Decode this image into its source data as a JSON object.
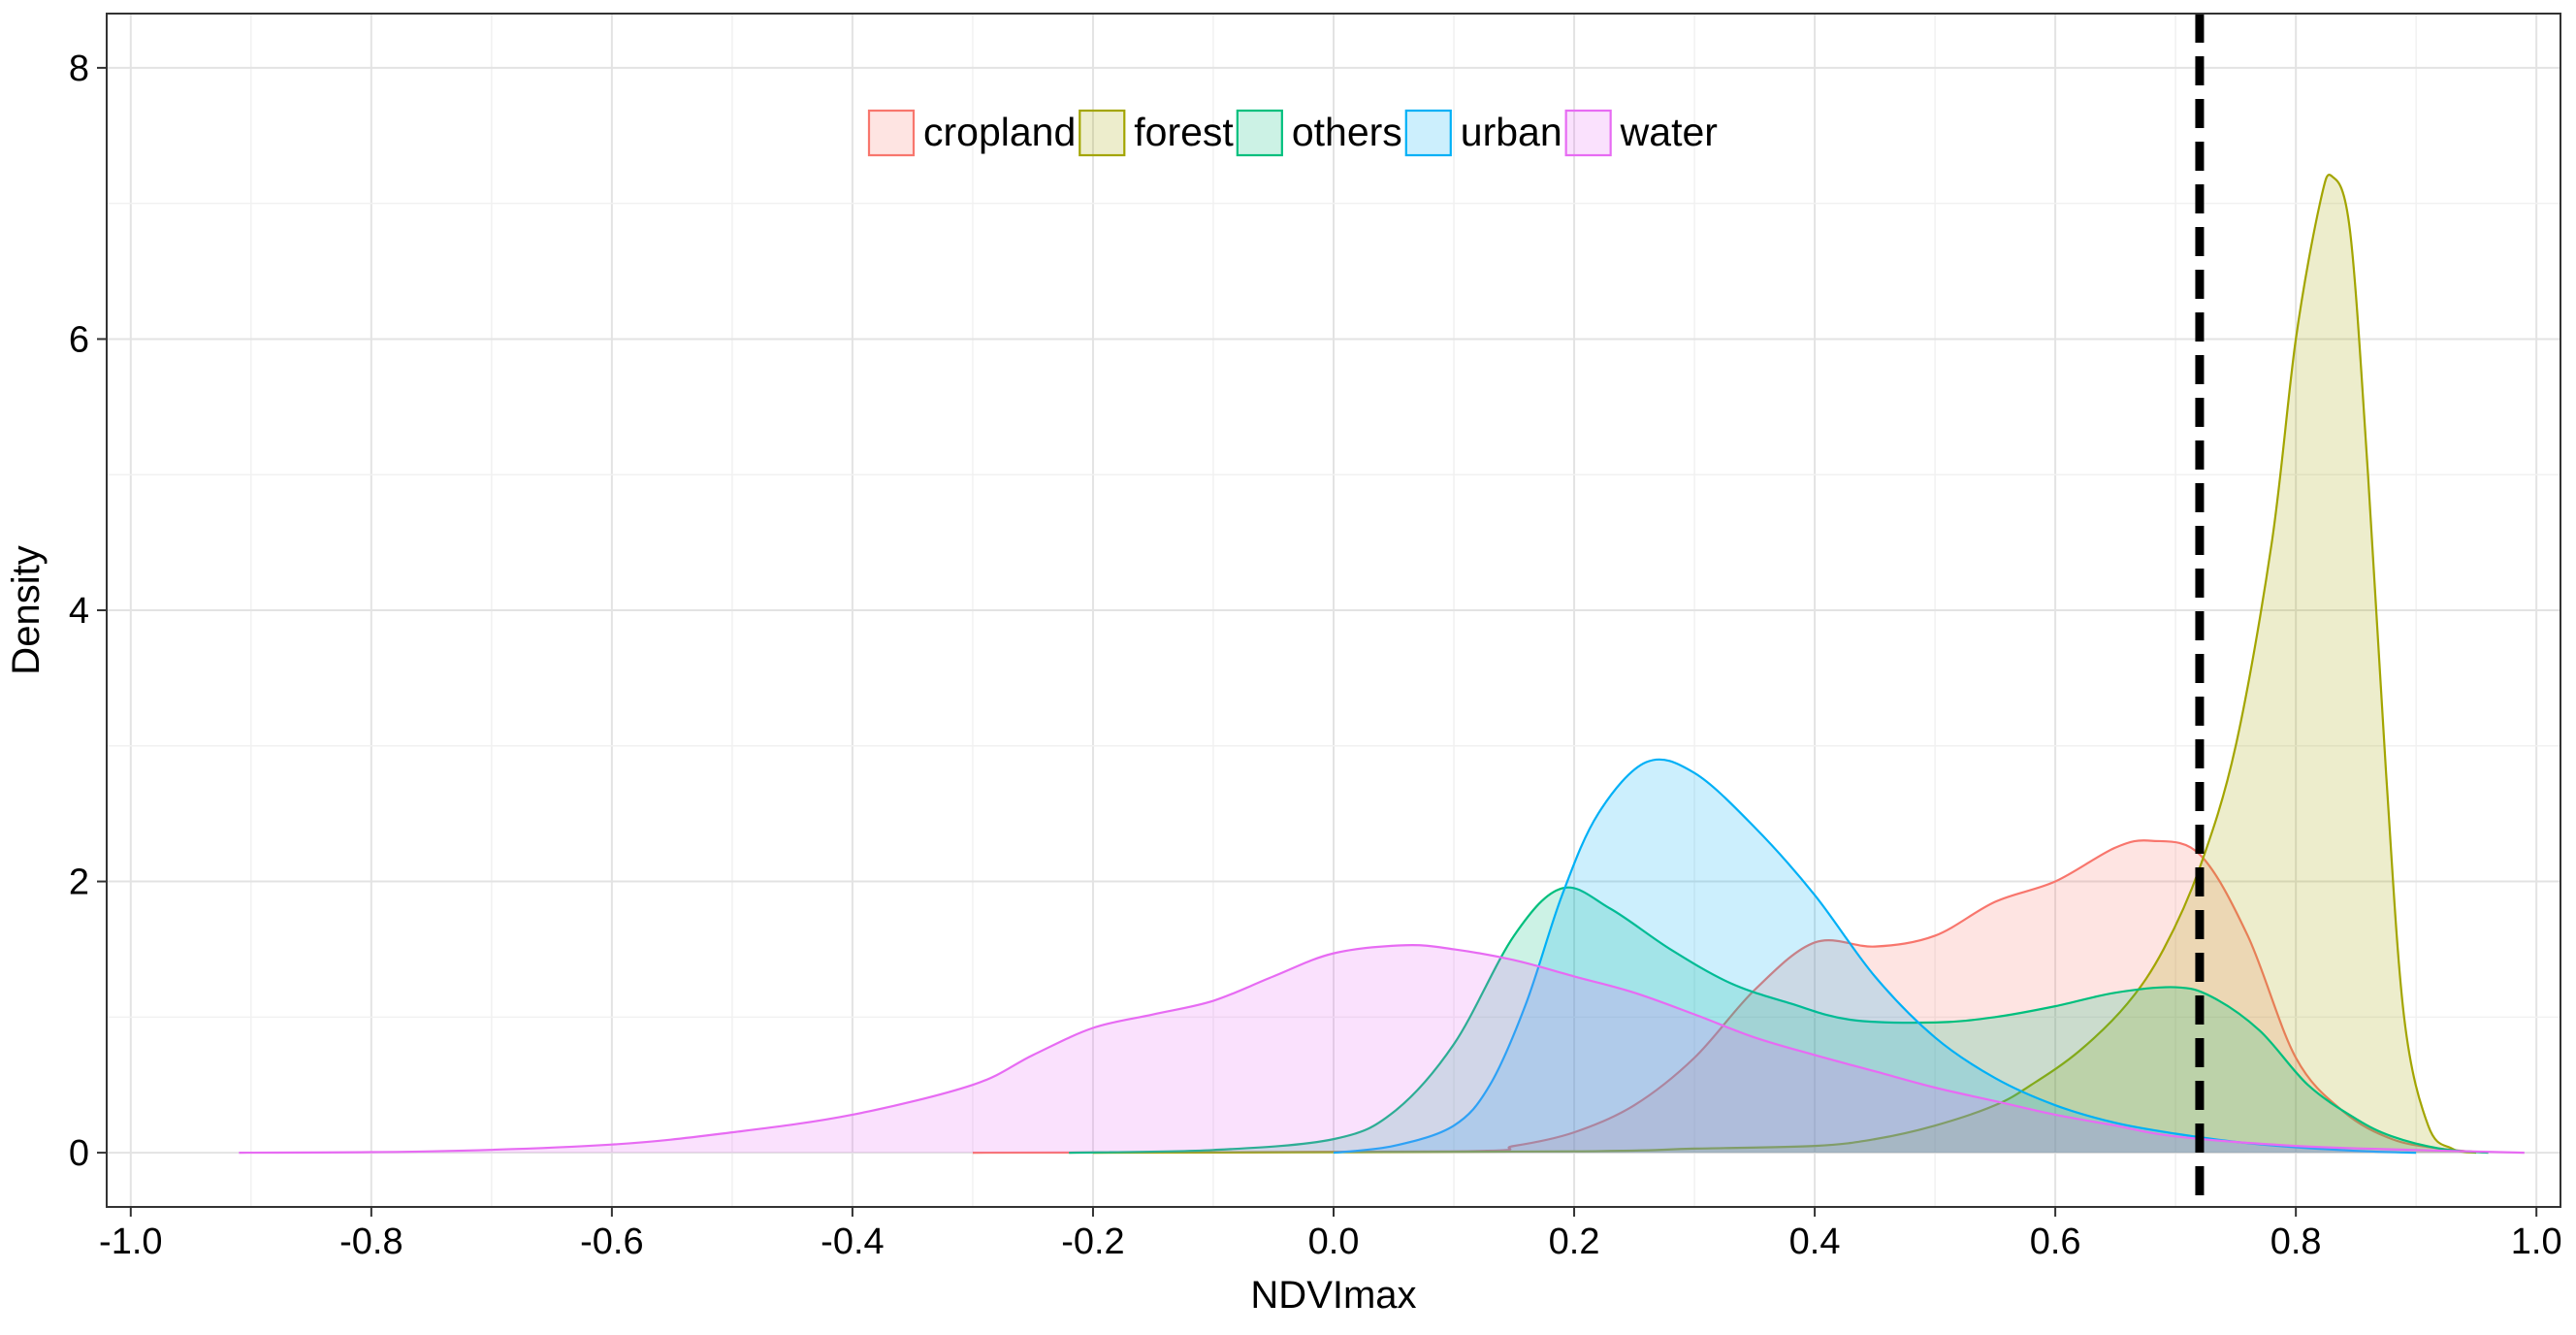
{
  "chart_data": {
    "type": "area",
    "xlabel": "NDVImax",
    "ylabel": "Density",
    "xlim": [
      -1.02,
      1.02
    ],
    "ylim": [
      -0.4,
      8.4
    ],
    "xticks": [
      "-1.0",
      "-0.8",
      "-0.6",
      "-0.4",
      "-0.2",
      "0.0",
      "0.2",
      "0.4",
      "0.6",
      "0.8",
      "1.0"
    ],
    "yticks": [
      "0",
      "2",
      "4",
      "6",
      "8"
    ],
    "grid": true,
    "legend_position": "top-center",
    "threshold_line": {
      "x": 0.72,
      "style": "dashed",
      "color": "#000000"
    },
    "series": [
      {
        "name": "cropland",
        "color": "#F8766D",
        "points": [
          [
            -0.3,
            0
          ],
          [
            0.1,
            0.01
          ],
          [
            0.15,
            0.05
          ],
          [
            0.2,
            0.15
          ],
          [
            0.25,
            0.35
          ],
          [
            0.3,
            0.7
          ],
          [
            0.35,
            1.2
          ],
          [
            0.4,
            1.55
          ],
          [
            0.45,
            1.52
          ],
          [
            0.5,
            1.6
          ],
          [
            0.55,
            1.85
          ],
          [
            0.6,
            2.0
          ],
          [
            0.65,
            2.25
          ],
          [
            0.68,
            2.3
          ],
          [
            0.72,
            2.2
          ],
          [
            0.76,
            1.6
          ],
          [
            0.8,
            0.7
          ],
          [
            0.84,
            0.3
          ],
          [
            0.88,
            0.1
          ],
          [
            0.92,
            0.03
          ],
          [
            0.96,
            0
          ]
        ]
      },
      {
        "name": "forest",
        "color": "#A3A500",
        "points": [
          [
            -0.2,
            0
          ],
          [
            0.2,
            0.01
          ],
          [
            0.3,
            0.03
          ],
          [
            0.4,
            0.05
          ],
          [
            0.45,
            0.1
          ],
          [
            0.5,
            0.2
          ],
          [
            0.55,
            0.35
          ],
          [
            0.58,
            0.5
          ],
          [
            0.62,
            0.75
          ],
          [
            0.66,
            1.1
          ],
          [
            0.69,
            1.5
          ],
          [
            0.72,
            2.1
          ],
          [
            0.75,
            3.0
          ],
          [
            0.78,
            4.5
          ],
          [
            0.8,
            6.0
          ],
          [
            0.82,
            7.0
          ],
          [
            0.83,
            7.2
          ],
          [
            0.845,
            6.8
          ],
          [
            0.86,
            5.0
          ],
          [
            0.875,
            2.8
          ],
          [
            0.89,
            1.0
          ],
          [
            0.91,
            0.2
          ],
          [
            0.93,
            0.03
          ],
          [
            0.95,
            0
          ]
        ]
      },
      {
        "name": "others",
        "color": "#00BF7D",
        "points": [
          [
            -0.22,
            0
          ],
          [
            -0.1,
            0.02
          ],
          [
            0.0,
            0.1
          ],
          [
            0.05,
            0.3
          ],
          [
            0.1,
            0.8
          ],
          [
            0.15,
            1.6
          ],
          [
            0.19,
            1.95
          ],
          [
            0.23,
            1.8
          ],
          [
            0.28,
            1.5
          ],
          [
            0.33,
            1.25
          ],
          [
            0.38,
            1.1
          ],
          [
            0.43,
            0.98
          ],
          [
            0.5,
            0.96
          ],
          [
            0.55,
            1.0
          ],
          [
            0.6,
            1.08
          ],
          [
            0.65,
            1.18
          ],
          [
            0.7,
            1.22
          ],
          [
            0.73,
            1.15
          ],
          [
            0.77,
            0.9
          ],
          [
            0.81,
            0.5
          ],
          [
            0.85,
            0.25
          ],
          [
            0.88,
            0.12
          ],
          [
            0.92,
            0.03
          ],
          [
            0.96,
            0
          ]
        ]
      },
      {
        "name": "urban",
        "color": "#00B0F6",
        "points": [
          [
            0.0,
            0
          ],
          [
            0.05,
            0.05
          ],
          [
            0.1,
            0.2
          ],
          [
            0.13,
            0.5
          ],
          [
            0.16,
            1.1
          ],
          [
            0.19,
            1.9
          ],
          [
            0.22,
            2.5
          ],
          [
            0.26,
            2.88
          ],
          [
            0.3,
            2.8
          ],
          [
            0.35,
            2.4
          ],
          [
            0.4,
            1.9
          ],
          [
            0.45,
            1.3
          ],
          [
            0.5,
            0.85
          ],
          [
            0.55,
            0.55
          ],
          [
            0.6,
            0.35
          ],
          [
            0.65,
            0.22
          ],
          [
            0.7,
            0.14
          ],
          [
            0.75,
            0.08
          ],
          [
            0.8,
            0.04
          ],
          [
            0.86,
            0.01
          ],
          [
            0.9,
            0
          ]
        ]
      },
      {
        "name": "water",
        "color": "#E76BF3",
        "points": [
          [
            -0.91,
            0
          ],
          [
            -0.75,
            0.01
          ],
          [
            -0.6,
            0.06
          ],
          [
            -0.5,
            0.15
          ],
          [
            -0.4,
            0.28
          ],
          [
            -0.3,
            0.5
          ],
          [
            -0.25,
            0.72
          ],
          [
            -0.2,
            0.92
          ],
          [
            -0.15,
            1.02
          ],
          [
            -0.1,
            1.12
          ],
          [
            -0.05,
            1.3
          ],
          [
            0.0,
            1.47
          ],
          [
            0.06,
            1.53
          ],
          [
            0.1,
            1.5
          ],
          [
            0.15,
            1.42
          ],
          [
            0.2,
            1.3
          ],
          [
            0.25,
            1.18
          ],
          [
            0.3,
            1.02
          ],
          [
            0.35,
            0.85
          ],
          [
            0.4,
            0.72
          ],
          [
            0.45,
            0.6
          ],
          [
            0.5,
            0.48
          ],
          [
            0.55,
            0.38
          ],
          [
            0.6,
            0.28
          ],
          [
            0.65,
            0.2
          ],
          [
            0.7,
            0.12
          ],
          [
            0.8,
            0.05
          ],
          [
            0.9,
            0.02
          ],
          [
            0.99,
            0
          ]
        ]
      }
    ]
  }
}
